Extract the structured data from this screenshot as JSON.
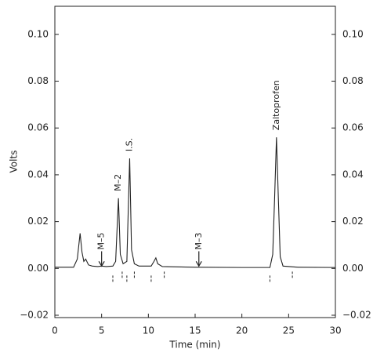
{
  "chart_data": {
    "type": "line",
    "xlabel": "Time (min)",
    "ylabel": "Volts",
    "xlim": [
      0,
      30
    ],
    "xticks": [
      0,
      5,
      10,
      15,
      20,
      25,
      30
    ],
    "ylim": [
      -0.021,
      0.112
    ],
    "yticks": [
      {
        "value": -0.02,
        "label": "−0.02"
      },
      {
        "value": 0,
        "label": "0.00"
      },
      {
        "value": 0.02,
        "label": "0.02"
      },
      {
        "value": 0.04,
        "label": "0.04"
      },
      {
        "value": 0.06,
        "label": "0.06"
      },
      {
        "value": 0.08,
        "label": "0.08"
      },
      {
        "value": 0.1,
        "label": "0.10"
      }
    ],
    "y2lim": [
      -0.021,
      0.112
    ],
    "y2ticks": [
      {
        "value": -0.02,
        "label": "−0.02"
      },
      {
        "value": 0,
        "label": "0.00"
      },
      {
        "value": 0.02,
        "label": "0.02"
      },
      {
        "value": 0.04,
        "label": "0.04"
      },
      {
        "value": 0.06,
        "label": "0.06"
      },
      {
        "value": 0.08,
        "label": "0.08"
      },
      {
        "value": 0.1,
        "label": "0.10"
      }
    ],
    "color": "#222222",
    "x": [
      0,
      2.0,
      2.4,
      2.7,
      2.9,
      3.1,
      3.3,
      3.6,
      4.0,
      4.6,
      5.0,
      5.5,
      6.2,
      6.5,
      6.8,
      7.0,
      7.3,
      7.7,
      8.0,
      8.2,
      8.5,
      9.0,
      10.3,
      10.6,
      10.8,
      11.0,
      11.5,
      15,
      20,
      23.0,
      23.3,
      23.5,
      23.7,
      23.9,
      24.1,
      24.4,
      26,
      30
    ],
    "values": [
      0.0005,
      0.0005,
      0.004,
      0.015,
      0.007,
      0.003,
      0.004,
      0.0015,
      0.001,
      0.0008,
      0.001,
      0.0008,
      0.001,
      0.003,
      0.03,
      0.006,
      0.002,
      0.003,
      0.047,
      0.008,
      0.002,
      0.001,
      0.001,
      0.003,
      0.0045,
      0.002,
      0.0008,
      0.0005,
      0.0004,
      0.0004,
      0.006,
      0.03,
      0.056,
      0.03,
      0.005,
      0.001,
      0.0005,
      0.0004
    ],
    "baseline_marks": [
      6.2,
      7.2,
      7.7,
      8.5,
      10.3,
      11.7,
      23.0,
      25.4
    ],
    "annotations": [
      {
        "text": "M–5",
        "x": 5.0,
        "y": 0.008,
        "arrow": true
      },
      {
        "text": "M–2",
        "x": 6.8,
        "y": 0.033,
        "arrow": false
      },
      {
        "text": "I.S.",
        "x": 8.0,
        "y": 0.05,
        "arrow": false
      },
      {
        "text": "M–3",
        "x": 15.4,
        "y": 0.008,
        "arrow": true
      },
      {
        "text": "Zaltoprofen",
        "x": 23.7,
        "y": 0.059,
        "arrow": false
      }
    ]
  }
}
